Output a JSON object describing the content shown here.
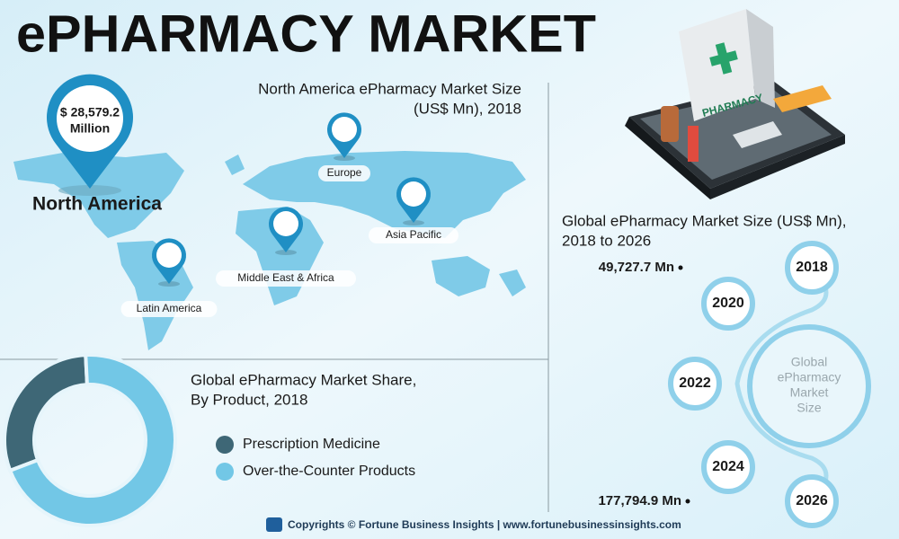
{
  "title": "ePHARMACY MARKET",
  "map": {
    "title_lines": [
      "North America ePharmacy Market Size",
      "(US$ Mn), 2018"
    ],
    "highlight": {
      "value": "$ 28,579.2",
      "unit": "Million",
      "region": "North America"
    },
    "regions": [
      "Europe",
      "Asia Pacific",
      "Middle East & Africa",
      "Latin America"
    ]
  },
  "illustration": {
    "label": "PHARMACY"
  },
  "market_size": {
    "title_lines": [
      "Global ePharmacy Market Size (US$ Mn),",
      "2018 to 2026"
    ],
    "center_lines": [
      "Global",
      "ePharmacy",
      "Market",
      "Size"
    ],
    "years": [
      "2018",
      "2020",
      "2022",
      "2024",
      "2026"
    ],
    "start_value": "49,727.7 Mn",
    "end_value": "177,794.9 Mn"
  },
  "chart_data": {
    "type": "pie",
    "title_lines": [
      "Global ePharmacy Market Share,",
      "By Product, 2018"
    ],
    "categories": [
      "Prescription Medicine",
      "Over-the-Counter Products"
    ],
    "values": [
      30,
      70
    ],
    "colors": [
      "#3e6776",
      "#72c7e6"
    ]
  },
  "footer": "Copyrights © Fortune Business Insights | www.fortunebusinessinsights.com"
}
